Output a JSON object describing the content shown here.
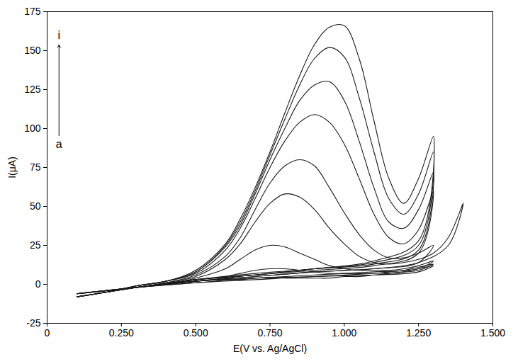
{
  "chart_data": {
    "type": "line",
    "xlabel": "E(V vs. Ag/AgCl)",
    "ylabel": "I(μA)",
    "xlim": [
      0,
      1.5
    ],
    "ylim": [
      -25,
      175
    ],
    "xticks": [
      0,
      {
        "value": 0.25,
        "label": "0.250"
      },
      {
        "value": 0.5,
        "label": "0.500"
      },
      {
        "value": 0.75,
        "label": "0.750"
      },
      {
        "value": 1.0,
        "label": "1.000"
      },
      {
        "value": 1.25,
        "label": "1.250"
      },
      {
        "value": 1.5,
        "label": "1.500"
      }
    ],
    "yticks": [
      -25,
      0,
      25,
      50,
      75,
      100,
      125,
      150,
      175
    ],
    "grid": false,
    "color": "#1a1a1a",
    "annotations": [
      {
        "text": "i",
        "x": 0.04,
        "y": 160
      },
      {
        "text": "a",
        "x": 0.04,
        "y": 90
      }
    ],
    "x": [
      0.1,
      0.2,
      0.3,
      0.4,
      0.5,
      0.6,
      0.65,
      0.7,
      0.75,
      0.8,
      0.85,
      0.9,
      0.95,
      1.0,
      1.05,
      1.1,
      1.15,
      1.2,
      1.25,
      1.3,
      1.25,
      1.1,
      0.9,
      0.7,
      0.5,
      0.3,
      0.1
    ],
    "series": [
      {
        "values": [
          -8,
          -5,
          -2,
          0,
          2,
          3,
          3,
          4,
          4,
          4,
          4,
          4,
          4,
          5,
          5,
          6,
          7,
          8,
          10,
          12,
          8,
          6,
          5,
          3,
          1,
          -2,
          -6
        ]
      },
      {
        "values": [
          -8,
          -5,
          -2,
          0,
          3,
          5,
          7,
          9,
          10,
          10,
          9,
          8,
          7,
          7,
          7,
          7,
          8,
          9,
          11,
          13,
          9,
          7,
          5,
          4,
          1,
          -2,
          -6
        ]
      },
      {
        "values": [
          -8,
          -5,
          -2,
          0,
          4,
          10,
          16,
          22,
          25,
          24,
          20,
          16,
          12,
          10,
          9,
          9,
          9,
          10,
          12,
          15,
          10,
          8,
          6,
          4,
          2,
          -2,
          -6
        ]
      },
      {
        "x": [
          0.1,
          0.2,
          0.3,
          0.4,
          0.5,
          0.6,
          0.65,
          0.7,
          0.75,
          0.8,
          0.85,
          0.9,
          0.95,
          1.0,
          1.05,
          1.1,
          1.15,
          1.2,
          1.25,
          1.3,
          1.35,
          1.4,
          1.35,
          1.25,
          1.1,
          0.9,
          0.7,
          0.5,
          0.3,
          0.1
        ],
        "values": [
          -8,
          -5,
          -2,
          1,
          5,
          16,
          26,
          40,
          52,
          58,
          56,
          48,
          36,
          26,
          18,
          14,
          13,
          14,
          16,
          20,
          30,
          52,
          25,
          14,
          10,
          8,
          5,
          2,
          -2,
          -6
        ]
      },
      {
        "values": [
          -8,
          -5,
          -2,
          1,
          6,
          18,
          30,
          48,
          65,
          76,
          80,
          76,
          62,
          46,
          32,
          22,
          17,
          17,
          20,
          25,
          14,
          10,
          8,
          5,
          2,
          -2,
          -6
        ]
      },
      {
        "values": [
          -8,
          -5,
          -1,
          2,
          7,
          22,
          36,
          55,
          75,
          92,
          104,
          109,
          104,
          90,
          68,
          45,
          30,
          26,
          35,
          60,
          20,
          12,
          9,
          6,
          2,
          -2,
          -6
        ]
      },
      {
        "values": [
          -8,
          -5,
          -1,
          2,
          8,
          24,
          38,
          58,
          80,
          100,
          118,
          128,
          130,
          118,
          92,
          62,
          40,
          36,
          48,
          72,
          22,
          13,
          10,
          6,
          3,
          -2,
          -6
        ]
      },
      {
        "values": [
          -8,
          -5,
          -1,
          2,
          8,
          25,
          40,
          60,
          83,
          106,
          128,
          145,
          152,
          146,
          120,
          85,
          55,
          45,
          58,
          85,
          25,
          14,
          10,
          6,
          3,
          -2,
          -6
        ]
      },
      {
        "values": [
          -8,
          -5,
          -1,
          2,
          9,
          26,
          42,
          62,
          85,
          110,
          134,
          154,
          165,
          166,
          145,
          105,
          68,
          52,
          68,
          95,
          28,
          15,
          10,
          7,
          3,
          -2,
          -6
        ]
      }
    ]
  }
}
